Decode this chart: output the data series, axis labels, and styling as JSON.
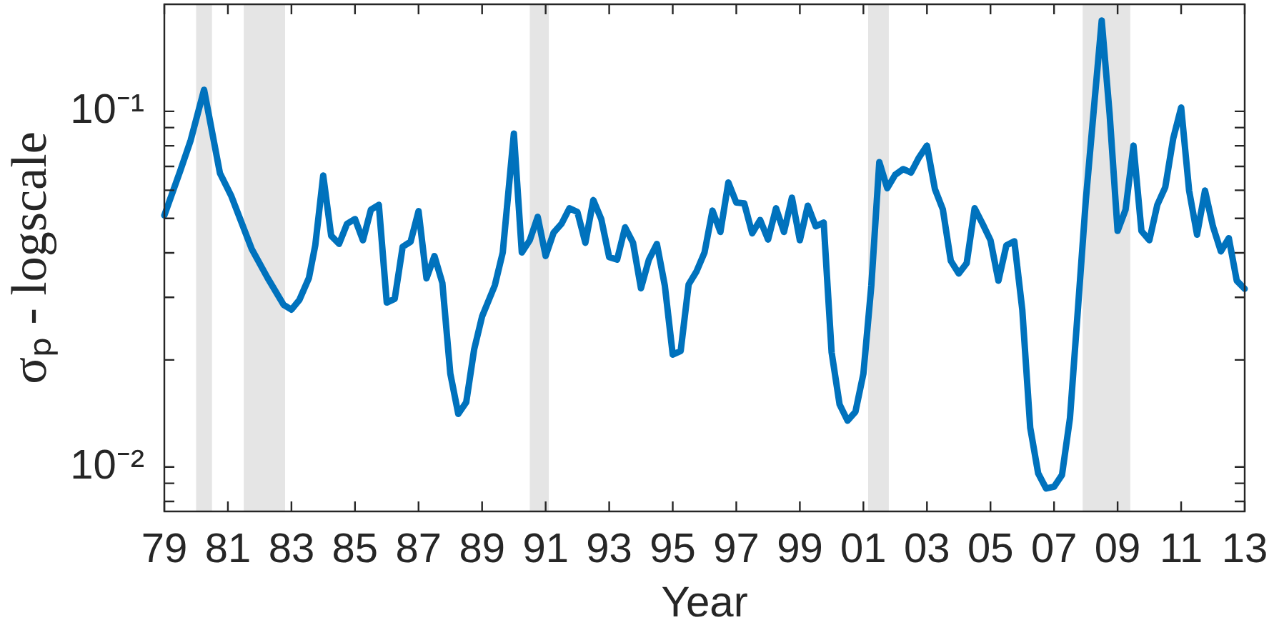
{
  "chart_data": {
    "type": "line",
    "xlabel": "Year",
    "ylabel": "σₚ - logscale",
    "log": "y",
    "color": "#0072bd",
    "x": [
      1979,
      1979.5,
      1979.83,
      1980.25,
      1980.75,
      1981.1,
      1981.75,
      1982.25,
      1982.75,
      1983,
      1983.25,
      1983.55,
      1983.75,
      1984,
      1984.25,
      1984.5,
      1984.75,
      1985,
      1985.25,
      1985.5,
      1985.75,
      1986,
      1986.25,
      1986.5,
      1986.75,
      1987,
      1987.25,
      1987.5,
      1987.75,
      1988,
      1988.25,
      1988.5,
      1988.75,
      1989,
      1989.4,
      1989.65,
      1990,
      1990.25,
      1990.5,
      1990.75,
      1991,
      1991.25,
      1991.5,
      1991.75,
      1992,
      1992.25,
      1992.5,
      1992.75,
      1993,
      1993.25,
      1993.5,
      1993.75,
      1994,
      1994.25,
      1994.5,
      1994.75,
      1995,
      1995.25,
      1995.5,
      1995.75,
      1996,
      1996.25,
      1996.5,
      1996.75,
      1997,
      1997.25,
      1997.5,
      1997.75,
      1998,
      1998.25,
      1998.5,
      1998.75,
      1999,
      1999.25,
      1999.5,
      1999.75,
      2000,
      2000.25,
      2000.5,
      2000.75,
      2001,
      2001.25,
      2001.5,
      2001.75,
      2002,
      2002.25,
      2002.5,
      2002.75,
      2003,
      2003.25,
      2003.5,
      2003.75,
      2004,
      2004.25,
      2004.5,
      2004.75,
      2005,
      2005.25,
      2005.5,
      2005.75,
      2006,
      2006.25,
      2006.5,
      2006.75,
      2007,
      2007.25,
      2007.5,
      2007.75,
      2008,
      2008.25,
      2008.5,
      2008.75,
      2009,
      2009.25,
      2009.5,
      2009.75,
      2010,
      2010.25,
      2010.5,
      2010.75,
      2011,
      2011.25,
      2011.5,
      2011.75,
      2012,
      2012.25,
      2012.5,
      2012.75,
      2013
    ],
    "values": [
      0.051,
      0.068,
      0.083,
      0.115,
      0.067,
      0.058,
      0.041,
      0.034,
      0.0286,
      0.0277,
      0.0295,
      0.034,
      0.042,
      0.066,
      0.0447,
      0.0424,
      0.0483,
      0.0498,
      0.0434,
      0.0529,
      0.0546,
      0.029,
      0.0297,
      0.0416,
      0.043,
      0.0524,
      0.0339,
      0.0392,
      0.0329,
      0.0183,
      0.0141,
      0.0152,
      0.0214,
      0.0265,
      0.0324,
      0.0401,
      0.0866,
      0.0401,
      0.0434,
      0.0505,
      0.0392,
      0.0456,
      0.0483,
      0.0534,
      0.0521,
      0.0427,
      0.0563,
      0.0498,
      0.0389,
      0.0383,
      0.0472,
      0.0427,
      0.0318,
      0.0383,
      0.0424,
      0.0324,
      0.0207,
      0.0212,
      0.0326,
      0.0355,
      0.0401,
      0.0526,
      0.0458,
      0.0631,
      0.0554,
      0.0551,
      0.0454,
      0.0495,
      0.0436,
      0.0534,
      0.0458,
      0.0572,
      0.0434,
      0.0543,
      0.0475,
      0.0487,
      0.021,
      0.015,
      0.0135,
      0.0143,
      0.0183,
      0.0324,
      0.072,
      0.0608,
      0.0663,
      0.0688,
      0.0673,
      0.0742,
      0.0801,
      0.0605,
      0.053,
      0.038,
      0.035,
      0.0374,
      0.0534,
      0.0483,
      0.0434,
      0.0334,
      0.042,
      0.0431,
      0.0277,
      0.0129,
      0.0096,
      0.0087,
      0.0088,
      0.0095,
      0.0137,
      0.0277,
      0.0563,
      0.101,
      0.18,
      0.098,
      0.0461,
      0.0529,
      0.0801,
      0.0461,
      0.0434,
      0.0546,
      0.0612,
      0.0839,
      0.1025,
      0.0599,
      0.045,
      0.0599,
      0.0475,
      0.0404,
      0.044,
      0.0334,
      0.0317
    ],
    "xlim": [
      1979,
      2013
    ],
    "xticks": [
      {
        "value": 1979,
        "label": "79"
      },
      {
        "value": 1981,
        "label": "81"
      },
      {
        "value": 1983,
        "label": "83"
      },
      {
        "value": 1985,
        "label": "85"
      },
      {
        "value": 1987,
        "label": "87"
      },
      {
        "value": 1989,
        "label": "89"
      },
      {
        "value": 1991,
        "label": "91"
      },
      {
        "value": 1993,
        "label": "93"
      },
      {
        "value": 1995,
        "label": "95"
      },
      {
        "value": 1997,
        "label": "97"
      },
      {
        "value": 1999,
        "label": "99"
      },
      {
        "value": 2001,
        "label": "01"
      },
      {
        "value": 2003,
        "label": "03"
      },
      {
        "value": 2005,
        "label": "05"
      },
      {
        "value": 2007,
        "label": "07"
      },
      {
        "value": 2009,
        "label": "09"
      },
      {
        "value": 2011,
        "label": "11"
      },
      {
        "value": 2013,
        "label": "13"
      }
    ],
    "ylim": [
      0.0075,
      0.2
    ],
    "yticks": [
      {
        "value": 0.008,
        "label": null
      },
      {
        "value": 0.009,
        "label": null
      },
      {
        "value": 0.01,
        "label": "10⁻²"
      },
      {
        "value": 0.02,
        "label": null
      },
      {
        "value": 0.03,
        "label": null
      },
      {
        "value": 0.04,
        "label": null
      },
      {
        "value": 0.05,
        "label": null
      },
      {
        "value": 0.06,
        "label": null
      },
      {
        "value": 0.07,
        "label": null
      },
      {
        "value": 0.08,
        "label": null
      },
      {
        "value": 0.09,
        "label": null
      },
      {
        "value": 0.1,
        "label": "10⁻¹"
      }
    ],
    "bands": [
      {
        "axis": "x",
        "from": 1980.0,
        "to": 1980.5,
        "color": "#e5e5e5"
      },
      {
        "axis": "x",
        "from": 1981.5,
        "to": 1982.8,
        "color": "#e5e5e5"
      },
      {
        "axis": "x",
        "from": 1990.5,
        "to": 1991.1,
        "color": "#e5e5e5"
      },
      {
        "axis": "x",
        "from": 2001.15,
        "to": 2001.8,
        "color": "#e5e5e5"
      },
      {
        "axis": "x",
        "from": 2007.9,
        "to": 2009.4,
        "color": "#e5e5e5"
      }
    ]
  }
}
